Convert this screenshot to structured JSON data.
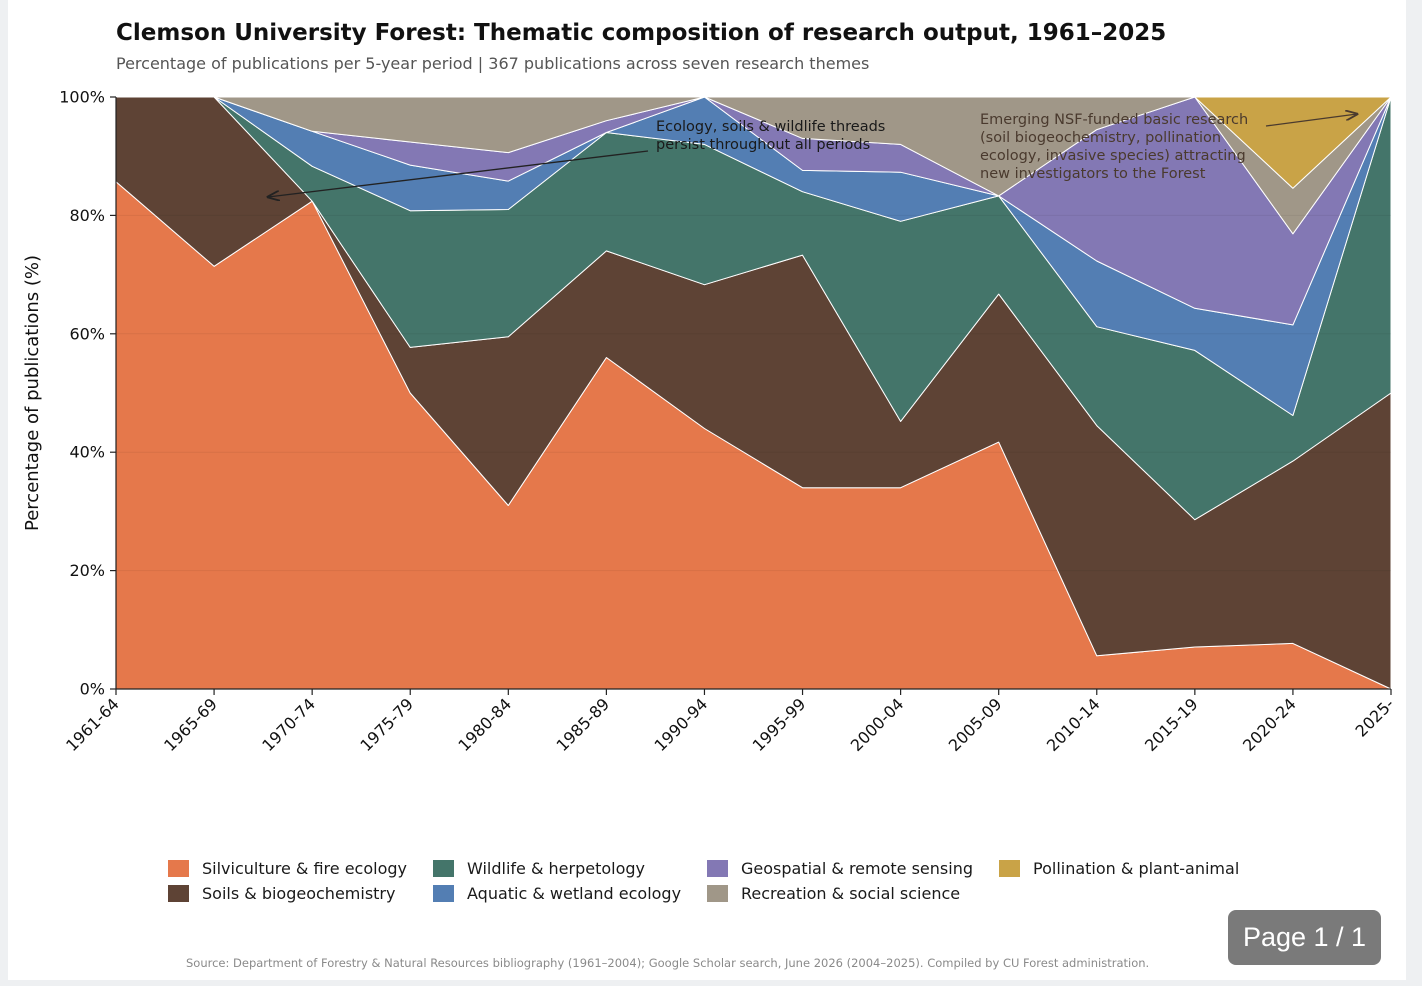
{
  "page_badge": "Page 1 / 1",
  "source_note": "Source: Department of Forestry & Natural Resources bibliography (1961–2004); Google Scholar search, June 2026 (2004–2025). Compiled by CU Forest administration.",
  "chart_data": {
    "type": "area",
    "stacked": "percent",
    "title": "Clemson University Forest: Thematic composition of research output, 1961–2025",
    "subtitle": "Percentage of publications per 5-year period  |  367 publications across seven research themes",
    "xlabel": "",
    "ylabel": "Percentage of publications (%)",
    "ylim": [
      0,
      100
    ],
    "y_ticks": [
      "0%",
      "20%",
      "40%",
      "60%",
      "80%",
      "100%"
    ],
    "grid": true,
    "legend_position": "bottom",
    "categories": [
      "1961-64",
      "1965-69",
      "1970-74",
      "1975-79",
      "1980-84",
      "1985-89",
      "1990-94",
      "1995-99",
      "2000-04",
      "2005-09",
      "2010-14",
      "2015-19",
      "2020-24",
      "2025-"
    ],
    "series": [
      {
        "name": "Silviculture & fire ecology",
        "color": "#e5784b",
        "values": [
          85.7,
          71.4,
          82.4,
          50.0,
          31.0,
          56.0,
          44.0,
          34.0,
          34.0,
          41.7,
          5.6,
          7.1,
          7.7,
          0.0
        ]
      },
      {
        "name": "Soils & biogeochemistry",
        "color": "#5e4335",
        "values": [
          14.3,
          28.6,
          0.0,
          7.7,
          28.5,
          18.0,
          24.3,
          39.3,
          11.2,
          25.0,
          38.9,
          21.5,
          30.8,
          50.0
        ]
      },
      {
        "name": "Wildlife & herpetology",
        "color": "#44756a",
        "values": [
          0.0,
          0.0,
          5.9,
          23.1,
          21.5,
          20.0,
          23.7,
          10.7,
          33.8,
          16.6,
          16.7,
          28.6,
          7.7,
          50.0
        ]
      },
      {
        "name": "Aquatic & wetland ecology",
        "color": "#537eb3",
        "values": [
          0.0,
          0.0,
          5.9,
          7.7,
          4.8,
          0.0,
          8.0,
          3.6,
          8.3,
          0.0,
          11.1,
          7.1,
          15.3,
          0.0
        ]
      },
      {
        "name": "Geospatial & remote sensing",
        "color": "#8378b4",
        "values": [
          0.0,
          0.0,
          0.0,
          3.9,
          4.8,
          2.0,
          0.0,
          5.4,
          4.7,
          0.0,
          22.2,
          35.7,
          15.4,
          0.0
        ]
      },
      {
        "name": "Recreation & social science",
        "color": "#a09788",
        "values": [
          0.0,
          0.0,
          5.8,
          7.6,
          9.4,
          4.0,
          0.0,
          7.0,
          8.0,
          16.7,
          5.5,
          0.0,
          7.7,
          0.0
        ]
      },
      {
        "name": "Pollination & plant-animal",
        "color": "#c9a347",
        "values": [
          0.0,
          0.0,
          0.0,
          0.0,
          0.0,
          0.0,
          0.0,
          0.0,
          0.0,
          0.0,
          0.0,
          0.0,
          15.4,
          0.0
        ]
      }
    ],
    "annotations": [
      {
        "text": [
          "Ecology, soils & wildlife threads",
          "persist throughout all periods"
        ]
      },
      {
        "text": [
          "Emerging NSF-funded basic research",
          "(soil biogeochemistry, pollination",
          "ecology, invasive species) attracting",
          "new investigators to the Forest"
        ]
      }
    ]
  }
}
